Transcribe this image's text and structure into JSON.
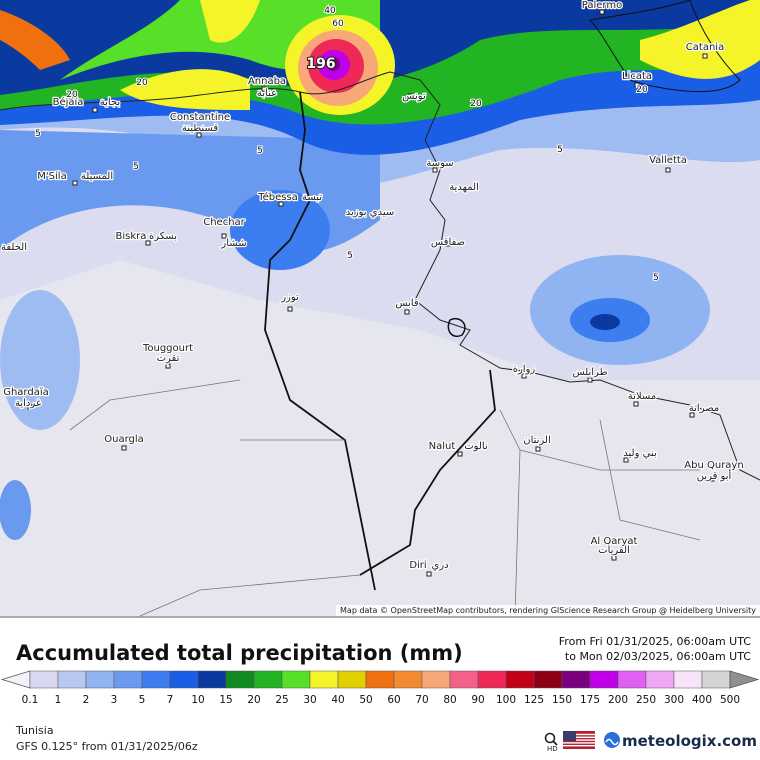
{
  "map": {
    "places": [
      "Palermo",
      "Catania",
      "Licata",
      "Annaba",
      "عنابة",
      "Béjaïa",
      "بجاية",
      "Constantine",
      "قسنطينة",
      "M'Sila",
      "المسيلة",
      "Biskra",
      "بسكرة",
      "Chechar",
      "ششار",
      "Tébessa",
      "تبسة",
      "Valletta",
      "Touggourt",
      "تقرت",
      "Ghardaïa",
      "غرداية",
      "Ouargla",
      "Nalut",
      "نالوت",
      "الزنتان",
      "زوارة",
      "طرابلس",
      "مصراتة",
      "Abu Qurayn",
      "أبو قرين",
      "Al Qaryat",
      "القريات",
      "Diri",
      "دري",
      "تونس",
      "سوسة",
      "صفاقس",
      "قابس",
      "توزر",
      "المهدية",
      "سيدي بوزيد",
      "بني وليد",
      "مسلاتة",
      "الخلفة"
    ],
    "contour_labels": [
      40,
      60,
      20,
      20,
      20,
      20,
      5,
      5,
      5,
      5,
      5,
      5
    ],
    "max_value": 196,
    "attribution": "Map data © OpenStreetMap contributors, rendering GIScience Research Group @ Heidelberg University"
  },
  "title": "Accumulated total precipitation (mm)",
  "period": {
    "from": "From Fri 01/31/2025, 06:00am UTC",
    "to": "to Mon 02/03/2025, 06:00am UTC"
  },
  "legend": {
    "values": [
      0.1,
      1,
      2,
      3,
      5,
      7,
      10,
      15,
      20,
      25,
      30,
      40,
      50,
      60,
      70,
      80,
      90,
      100,
      125,
      150,
      175,
      200,
      250,
      300,
      400,
      500
    ],
    "colors": [
      "#f2f2fa",
      "#d8d8f0",
      "#b8c8f2",
      "#90b4f2",
      "#6a9af0",
      "#3c7ef0",
      "#1a5ee6",
      "#0a3aa0",
      "#128a22",
      "#22b422",
      "#58e028",
      "#f4f428",
      "#e0d000",
      "#f07010",
      "#f48a30",
      "#f8a878",
      "#f46088",
      "#f02858",
      "#c40018",
      "#8c0018",
      "#7a0080",
      "#c000e8",
      "#e060f4",
      "#f0a8f4",
      "#f8e4f8",
      "#d4d4d4",
      "#909090"
    ]
  },
  "region": "Tunisia",
  "model": "GFS 0.125° from  01/31/2025/06z",
  "hd": "HD",
  "brand": "meteologix.com"
}
